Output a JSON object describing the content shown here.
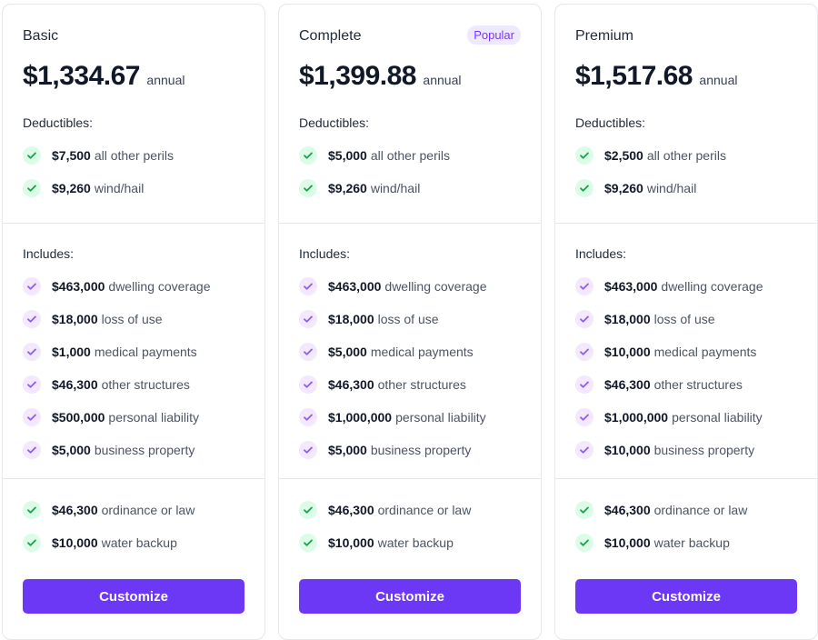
{
  "colors": {
    "accent": "#6d38f5",
    "check_green": "#16a34a",
    "check_purple": "#8b5cf6",
    "badge_bg": "#ede9fe"
  },
  "icons": {
    "deductible": "check-circle-green",
    "include": "check-circle-purple",
    "extra": "check-circle-green"
  },
  "plans": [
    {
      "name": "Basic",
      "badge": null,
      "price": "$1,334.67",
      "period": "annual",
      "deductibles_label": "Deductibles:",
      "deductibles": [
        {
          "amount": "$7,500",
          "text": "all other perils"
        },
        {
          "amount": "$9,260",
          "text": "wind/hail"
        }
      ],
      "includes_label": "Includes:",
      "includes": [
        {
          "amount": "$463,000",
          "text": "dwelling coverage"
        },
        {
          "amount": "$18,000",
          "text": "loss of use"
        },
        {
          "amount": "$1,000",
          "text": "medical payments"
        },
        {
          "amount": "$46,300",
          "text": "other structures"
        },
        {
          "amount": "$500,000",
          "text": "personal liability"
        },
        {
          "amount": "$5,000",
          "text": "business property"
        }
      ],
      "extras": [
        {
          "amount": "$46,300",
          "text": "ordinance or law"
        },
        {
          "amount": "$10,000",
          "text": "water backup"
        }
      ],
      "button_label": "Customize"
    },
    {
      "name": "Complete",
      "badge": "Popular",
      "price": "$1,399.88",
      "period": "annual",
      "deductibles_label": "Deductibles:",
      "deductibles": [
        {
          "amount": "$5,000",
          "text": "all other perils"
        },
        {
          "amount": "$9,260",
          "text": "wind/hail"
        }
      ],
      "includes_label": "Includes:",
      "includes": [
        {
          "amount": "$463,000",
          "text": "dwelling coverage"
        },
        {
          "amount": "$18,000",
          "text": "loss of use"
        },
        {
          "amount": "$5,000",
          "text": "medical payments"
        },
        {
          "amount": "$46,300",
          "text": "other structures"
        },
        {
          "amount": "$1,000,000",
          "text": "personal liability"
        },
        {
          "amount": "$5,000",
          "text": "business property"
        }
      ],
      "extras": [
        {
          "amount": "$46,300",
          "text": "ordinance or law"
        },
        {
          "amount": "$10,000",
          "text": "water backup"
        }
      ],
      "button_label": "Customize"
    },
    {
      "name": "Premium",
      "badge": null,
      "price": "$1,517.68",
      "period": "annual",
      "deductibles_label": "Deductibles:",
      "deductibles": [
        {
          "amount": "$2,500",
          "text": "all other perils"
        },
        {
          "amount": "$9,260",
          "text": "wind/hail"
        }
      ],
      "includes_label": "Includes:",
      "includes": [
        {
          "amount": "$463,000",
          "text": "dwelling coverage"
        },
        {
          "amount": "$18,000",
          "text": "loss of use"
        },
        {
          "amount": "$10,000",
          "text": "medical payments"
        },
        {
          "amount": "$46,300",
          "text": "other structures"
        },
        {
          "amount": "$1,000,000",
          "text": "personal liability"
        },
        {
          "amount": "$10,000",
          "text": "business property"
        }
      ],
      "extras": [
        {
          "amount": "$46,300",
          "text": "ordinance or law"
        },
        {
          "amount": "$10,000",
          "text": "water backup"
        }
      ],
      "button_label": "Customize"
    }
  ]
}
